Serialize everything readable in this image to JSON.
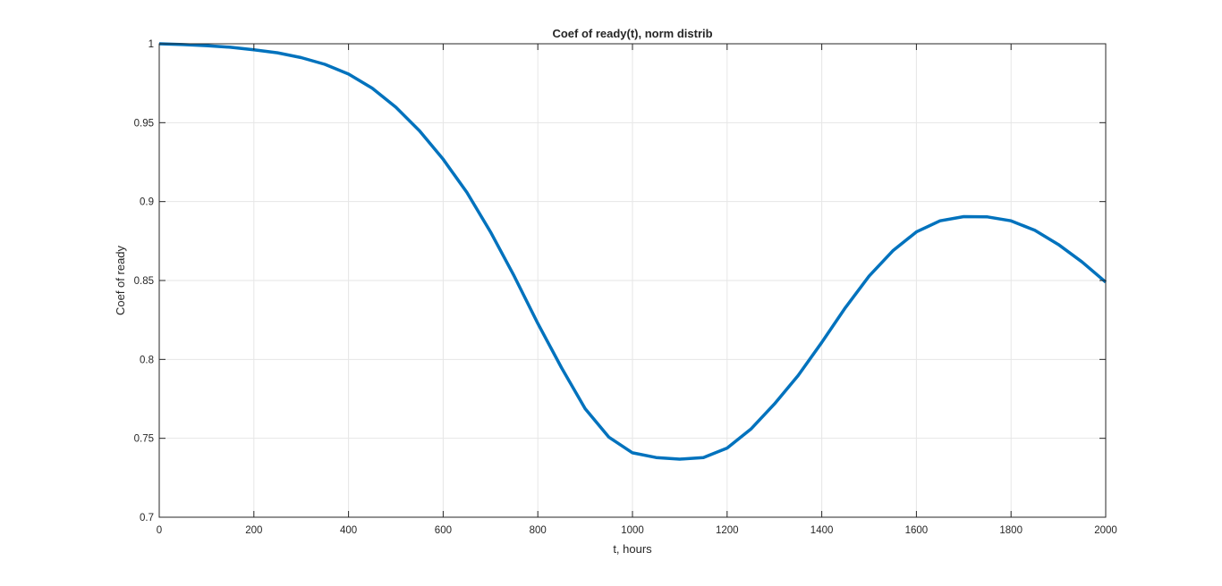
{
  "chart_data": {
    "type": "line",
    "title": "Coef of ready(t), norm distrib",
    "xlabel": "t, hours",
    "ylabel": "Coef of ready",
    "xlim": [
      0,
      2000
    ],
    "ylim": [
      0.7,
      1
    ],
    "xticks": [
      0,
      200,
      400,
      600,
      800,
      1000,
      1200,
      1400,
      1600,
      1800,
      2000
    ],
    "xtick_labels": [
      "0",
      "200",
      "400",
      "600",
      "800",
      "1000",
      "1200",
      "1400",
      "1600",
      "1800",
      "2000"
    ],
    "yticks": [
      0.7,
      0.75,
      0.8,
      0.85,
      0.9,
      0.95,
      1
    ],
    "ytick_labels": [
      "0.7",
      "0.75",
      "0.8",
      "0.85",
      "0.9",
      "0.95",
      "1"
    ],
    "grid": true,
    "series": [
      {
        "color": "#0072BD",
        "x": [
          0,
          50,
          100,
          150,
          200,
          250,
          300,
          350,
          400,
          450,
          500,
          550,
          600,
          650,
          700,
          750,
          800,
          850,
          900,
          950,
          1000,
          1050,
          1100,
          1150,
          1200,
          1250,
          1300,
          1350,
          1400,
          1450,
          1500,
          1550,
          1600,
          1650,
          1700,
          1750,
          1800,
          1850,
          1900,
          1950,
          2000
        ],
        "y": [
          1.0,
          0.9995,
          0.9988,
          0.9978,
          0.9962,
          0.9943,
          0.9912,
          0.987,
          0.9808,
          0.9718,
          0.9598,
          0.9448,
          0.9268,
          0.9058,
          0.8808,
          0.8528,
          0.8228,
          0.7948,
          0.7688,
          0.7508,
          0.7408,
          0.7378,
          0.7368,
          0.7378,
          0.7438,
          0.7558,
          0.7718,
          0.7898,
          0.8108,
          0.8328,
          0.8528,
          0.8688,
          0.8808,
          0.8878,
          0.8905,
          0.8903,
          0.8878,
          0.8818,
          0.8728,
          0.8618,
          0.849
        ]
      }
    ]
  }
}
